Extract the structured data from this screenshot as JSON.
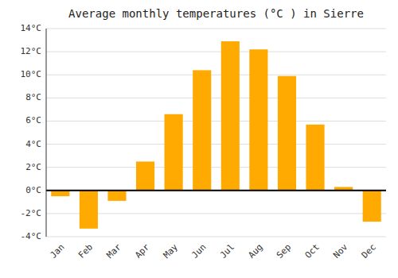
{
  "chart_data": {
    "type": "bar",
    "title": "Average monthly temperatures (°C ) in Sierre",
    "categories": [
      "Jan",
      "Feb",
      "Mar",
      "Apr",
      "May",
      "Jun",
      "Jul",
      "Aug",
      "Sep",
      "Oct",
      "Nov",
      "Dec"
    ],
    "values": [
      -0.5,
      -3.3,
      -0.9,
      2.5,
      6.6,
      10.4,
      12.9,
      12.2,
      9.9,
      5.7,
      0.3,
      -2.7
    ],
    "color": "#FFAA00",
    "ylim": [
      -4,
      14
    ],
    "yticks": [
      {
        "value": -4,
        "label": "-4°C"
      },
      {
        "value": -2,
        "label": "-2°C"
      },
      {
        "value": 0,
        "label": "0°C"
      },
      {
        "value": 2,
        "label": "2°C"
      },
      {
        "value": 4,
        "label": "4°C"
      },
      {
        "value": 6,
        "label": "6°C"
      },
      {
        "value": 8,
        "label": "8°C"
      },
      {
        "value": 10,
        "label": "10°C"
      },
      {
        "value": 12,
        "label": "12°C"
      },
      {
        "value": 14,
        "label": "14°C"
      }
    ],
    "grid": true
  }
}
